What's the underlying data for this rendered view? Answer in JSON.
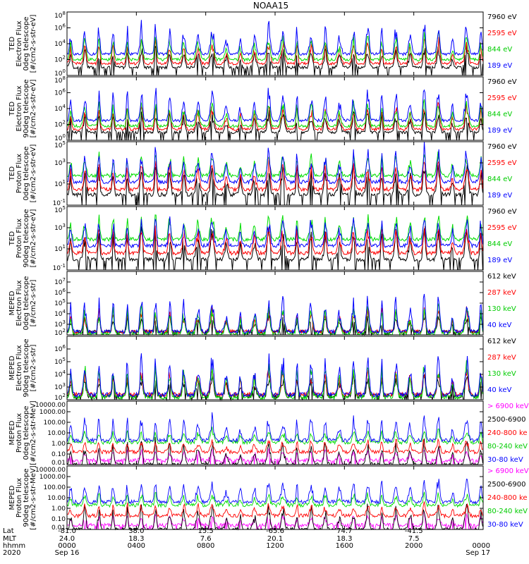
{
  "chart_data": {
    "type": "line",
    "title": "NOAA15",
    "colors": {
      "blue": "#0000ff",
      "green": "#00dd00",
      "red": "#ff0000",
      "black": "#000000",
      "magenta": "#ff00ff"
    },
    "x_axis": {
      "row_labels": [
        "Lat",
        "MLT",
        "hhmm",
        "2020"
      ],
      "ticks": [
        {
          "lat": "-81.0",
          "mlt": "24.0",
          "hhmm": "0000",
          "date": "Sep 16"
        },
        {
          "lat": "38.0",
          "mlt": "18.3",
          "hhmm": "0400",
          "date": ""
        },
        {
          "lat": "15.5",
          "mlt": "7.6",
          "hhmm": "0800",
          "date": ""
        },
        {
          "lat": "-65.6",
          "mlt": "20.1",
          "hhmm": "1200",
          "date": ""
        },
        {
          "lat": "74.7",
          "mlt": "18.3",
          "hhmm": "1600",
          "date": ""
        },
        {
          "lat": "-41.5",
          "mlt": "7.5",
          "hhmm": "2000",
          "date": ""
        },
        {
          "lat": "",
          "mlt": "",
          "hhmm": "0000",
          "date": "Sep 17"
        }
      ]
    },
    "panels": [
      {
        "ylabel": [
          "TED",
          "Electron Flux",
          "0deg telescope",
          "[#/cm2-s-str-eV]"
        ],
        "scale": "log",
        "ylim": [
          1,
          100000000
        ],
        "yticks": [
          "10^0",
          "10^2",
          "10^4",
          "10^6",
          "10^8"
        ],
        "series": [
          {
            "name": "7960 eV",
            "color": "#000000",
            "base": 1,
            "peak": 4
          },
          {
            "name": "2595 eV",
            "color": "#ff0000",
            "base": 1.5,
            "peak": 5
          },
          {
            "name": "844 eV",
            "color": "#00dd00",
            "base": 2,
            "peak": 5.5
          },
          {
            "name": "189 eV",
            "color": "#0000ff",
            "base": 2.7,
            "peak": 7
          }
        ]
      },
      {
        "ylabel": [
          "TED",
          "Electron Flux",
          "90deg telescope",
          "[#/cm2-s-str-eV]"
        ],
        "scale": "log",
        "ylim": [
          1,
          100000000
        ],
        "yticks": [
          "10^0",
          "10^2",
          "10^4",
          "10^6",
          "10^8"
        ],
        "series": [
          {
            "name": "7960 eV",
            "color": "#000000",
            "base": 1,
            "peak": 4
          },
          {
            "name": "2595 eV",
            "color": "#ff0000",
            "base": 1.4,
            "peak": 5
          },
          {
            "name": "844 eV",
            "color": "#00dd00",
            "base": 1.8,
            "peak": 5.5
          },
          {
            "name": "189 eV",
            "color": "#0000ff",
            "base": 2.5,
            "peak": 6.8
          }
        ]
      },
      {
        "ylabel": [
          "TED",
          "Proton Flux",
          "0deg telescope",
          "[#/cm2-s-str-eV]"
        ],
        "scale": "log",
        "ylim": [
          0.1,
          100000
        ],
        "yticks": [
          "10^-1",
          "10^1",
          "10^3",
          "10^5"
        ],
        "series": [
          {
            "name": "7960 eV",
            "color": "#000000",
            "base": 0,
            "peak": 3.2
          },
          {
            "name": "2595 eV",
            "color": "#ff0000",
            "base": 0.5,
            "peak": 3.5
          },
          {
            "name": "844 eV",
            "color": "#00dd00",
            "base": 1.8,
            "peak": 4.2
          },
          {
            "name": "189 eV",
            "color": "#0000ff",
            "base": 1.2,
            "peak": 4.6
          }
        ]
      },
      {
        "ylabel": [
          "TED",
          "Proton Flux",
          "90deg telescope",
          "[#/cm2-s-str-eV]"
        ],
        "scale": "log",
        "ylim": [
          0.1,
          100000
        ],
        "yticks": [
          "10^-1",
          "10^1",
          "10^3",
          "10^5"
        ],
        "series": [
          {
            "name": "7960 eV",
            "color": "#000000",
            "base": 0,
            "peak": 3.2
          },
          {
            "name": "2595 eV",
            "color": "#ff0000",
            "base": 0.6,
            "peak": 3.5
          },
          {
            "name": "844 eV",
            "color": "#00dd00",
            "base": 1.9,
            "peak": 4.5
          },
          {
            "name": "189 eV",
            "color": "#0000ff",
            "base": 1.3,
            "peak": 4.4
          }
        ]
      },
      {
        "ylabel": [
          "MEPED",
          "Electron Flux",
          "0deg telescope",
          "[#/cm2-s-str]"
        ],
        "scale": "log",
        "ylim": [
          100,
          100000000
        ],
        "yticks": [
          "10^2",
          "10^3",
          "10^4",
          "10^5",
          "10^6",
          "10^7"
        ],
        "series": [
          {
            "name": "612 keV",
            "color": "#000000",
            "base": 2.3,
            "peak": 4.2
          },
          {
            "name": "287 keV",
            "color": "#ff0000",
            "base": 2.3,
            "peak": 4.8
          },
          {
            "name": "130 keV",
            "color": "#00dd00",
            "base": 2.1,
            "peak": 5.2
          },
          {
            "name": "40 keV",
            "color": "#0000ff",
            "base": 2.3,
            "peak": 6.3
          }
        ]
      },
      {
        "ylabel": [
          "MEPED",
          "Electron Flux",
          "90deg telescope",
          "[#/cm2-s-str]"
        ],
        "scale": "log",
        "ylim": [
          100,
          10000000
        ],
        "yticks": [
          "10^2",
          "10^3",
          "10^4",
          "10^5",
          "10^6"
        ],
        "series": [
          {
            "name": "612 keV",
            "color": "#000000",
            "base": 2.3,
            "peak": 4.2
          },
          {
            "name": "287 keV",
            "color": "#ff0000",
            "base": 2.4,
            "peak": 4.8
          },
          {
            "name": "130 keV",
            "color": "#00dd00",
            "base": 2.2,
            "peak": 5.2
          },
          {
            "name": "40 keV",
            "color": "#0000ff",
            "base": 2.4,
            "peak": 5.9
          }
        ]
      },
      {
        "ylabel": [
          "MEPED",
          "Proton Flux",
          "0deg telescope",
          "[#/cm2-s-str-MeV]"
        ],
        "scale": "log",
        "ylim": [
          0.01,
          10000
        ],
        "yticks": [
          "0.01",
          "0.10",
          "1.00",
          "10.00",
          "100.00",
          "1000.00",
          "10000.00"
        ],
        "series": [
          {
            "name": "> 6900 keV",
            "color": "#ff00ff",
            "base": -1.6,
            "peak": -0.4
          },
          {
            "name": "2500-6900",
            "color": "#000000",
            "base": -2,
            "peak": 0.5
          },
          {
            "name": "240-800 ke",
            "color": "#ff0000",
            "base": -0.8,
            "peak": 0.6
          },
          {
            "name": "80-240 keV",
            "color": "#00dd00",
            "base": 0.1,
            "peak": 1.5
          },
          {
            "name": "30-80 keV",
            "color": "#0000ff",
            "base": 0.3,
            "peak": 2.9
          }
        ]
      },
      {
        "ylabel": [
          "MEPED",
          "Proton Flux",
          "90deg telescope",
          "[#/cm2-s-str-MeV]"
        ],
        "scale": "log",
        "ylim": [
          0.01,
          10000
        ],
        "yticks": [
          "0.01",
          "0.10",
          "1.00",
          "10.00",
          "100.00",
          "1000.00",
          "10000.00"
        ],
        "series": [
          {
            "name": "> 6900 keV",
            "color": "#ff00ff",
            "base": -1.6,
            "peak": -0.4
          },
          {
            "name": "2500-6900",
            "color": "#000000",
            "base": -2,
            "peak": 0.5
          },
          {
            "name": "240-800 ke",
            "color": "#ff0000",
            "base": -0.7,
            "peak": 0.6
          },
          {
            "name": "80-240 keV",
            "color": "#00dd00",
            "base": 0.3,
            "peak": 1.6
          },
          {
            "name": "30-80 keV",
            "color": "#0000ff",
            "base": 0.6,
            "peak": 3.1
          }
        ]
      }
    ]
  }
}
